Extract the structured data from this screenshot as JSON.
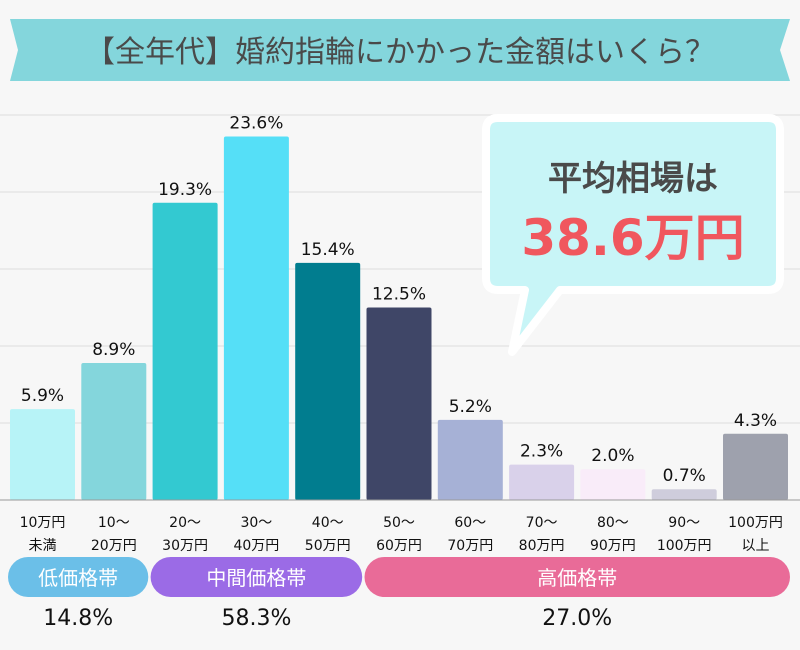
{
  "chart_data": {
    "type": "bar",
    "title": "【全年代】婚約指輪にかかった金額はいくら？",
    "categories": [
      [
        "10万円",
        "未満"
      ],
      [
        "10〜",
        "20万円"
      ],
      [
        "20〜",
        "30万円"
      ],
      [
        "30〜",
        "40万円"
      ],
      [
        "40〜",
        "50万円"
      ],
      [
        "50〜",
        "60万円"
      ],
      [
        "60〜",
        "70万円"
      ],
      [
        "70〜",
        "80万円"
      ],
      [
        "80〜",
        "90万円"
      ],
      [
        "90〜",
        "100万円"
      ],
      [
        "100万円",
        "以上"
      ]
    ],
    "values": [
      5.9,
      8.9,
      19.3,
      23.6,
      15.4,
      12.5,
      5.2,
      2.3,
      2.0,
      0.7,
      4.3
    ],
    "value_labels": [
      "5.9%",
      "8.9%",
      "19.3%",
      "23.6%",
      "15.4%",
      "12.5%",
      "5.2%",
      "2.3%",
      "2.0%",
      "0.7%",
      "4.3%"
    ],
    "colors": [
      "#b7f3f7",
      "#84d6dc",
      "#33c9d1",
      "#55dff7",
      "#017d8f",
      "#3f4667",
      "#a6b1d6",
      "#d9d1ea",
      "#f9ecf9",
      "#cfcddc",
      "#9ea1ad"
    ],
    "ylim": [
      0,
      25
    ],
    "grid": true,
    "gridlines": [
      5,
      10,
      15,
      20,
      25
    ],
    "callout": {
      "label": "平均相場は",
      "value": "38.6万円"
    },
    "groups": [
      {
        "label": "低価格帯",
        "share": "14.8%",
        "color": "#6bbfe8",
        "from": 0,
        "to": 1
      },
      {
        "label": "中間価格帯",
        "share": "58.3%",
        "color": "#9b6be6",
        "from": 2,
        "to": 4
      },
      {
        "label": "高価格帯",
        "share": "27.0%",
        "color": "#e96b98",
        "from": 5,
        "to": 10
      }
    ]
  }
}
